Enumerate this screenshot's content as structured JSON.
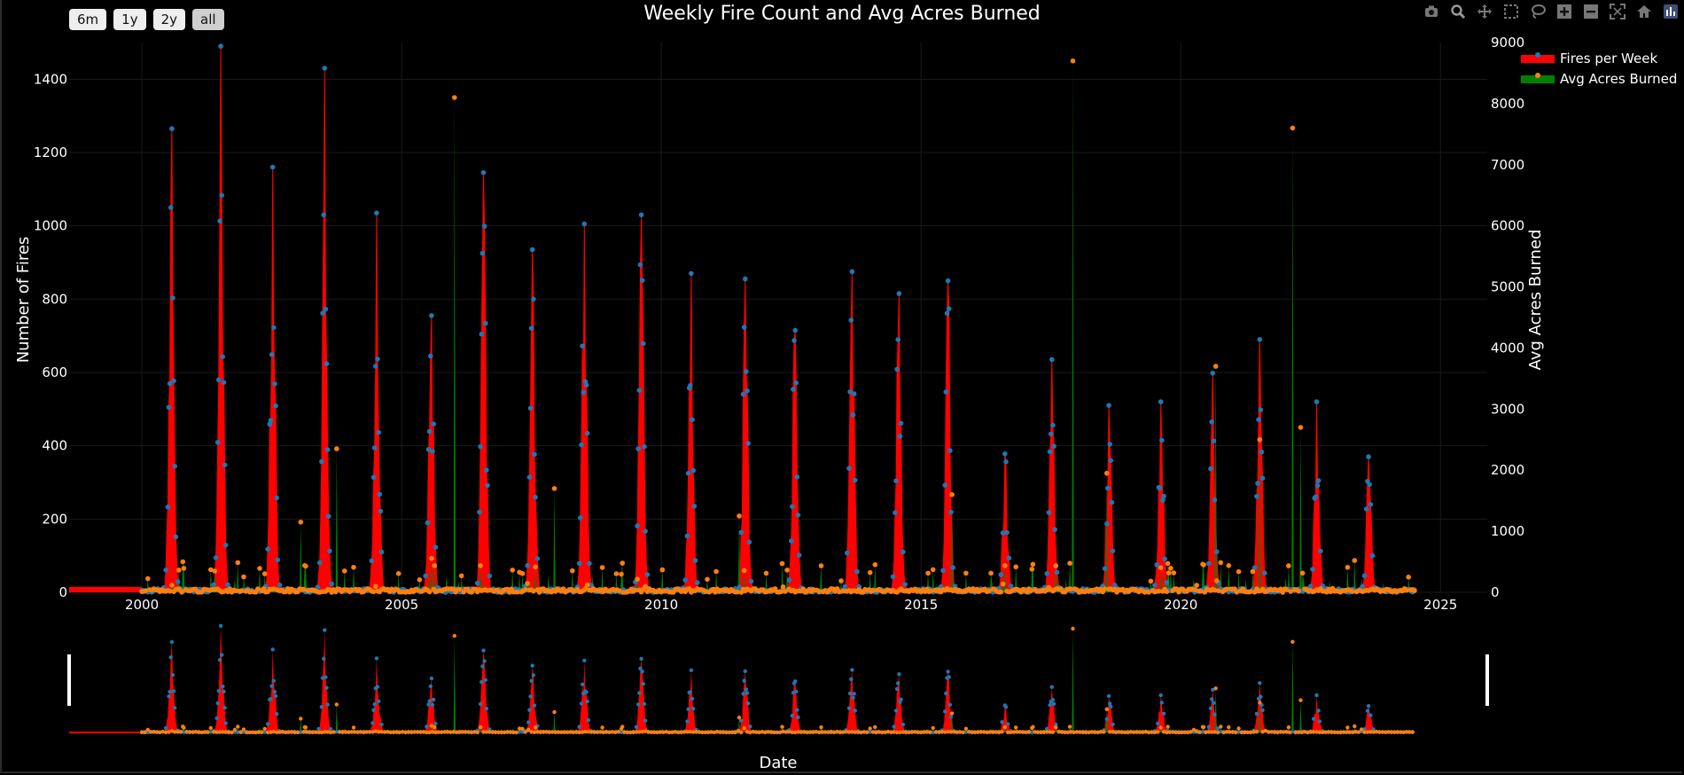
{
  "range_buttons": [
    "6m",
    "1y",
    "2y",
    "all"
  ],
  "range_active": "all",
  "modebar": [
    "camera-icon",
    "zoom-icon",
    "pan-icon",
    "box-select-icon",
    "lasso-icon",
    "zoom-in-icon",
    "zoom-out-icon",
    "autoscale-icon",
    "home-icon",
    "plotly-logo-icon"
  ],
  "chart_data": {
    "type": "area",
    "title": "Weekly Fire Count and Avg Acres Burned",
    "xlabel": "Date",
    "ylabel": "Number of Fires",
    "y2label": "Avg Acres Burned",
    "xlim": [
      1998.6,
      2025.9
    ],
    "ylim": [
      0,
      1500
    ],
    "y2lim": [
      0,
      9000
    ],
    "x_ticks": [
      "2000",
      "2005",
      "2010",
      "2015",
      "2020",
      "2025"
    ],
    "y_ticks": [
      "0",
      "200",
      "400",
      "600",
      "800",
      "1000",
      "1200",
      "1400"
    ],
    "y2_ticks": [
      "0",
      "1000",
      "2000",
      "3000",
      "4000",
      "5000",
      "6000",
      "7000",
      "8000",
      "9000"
    ],
    "legend": {
      "position": "top-right"
    },
    "rangeslider": true,
    "colors": {
      "fires_fill": "#ff0000",
      "fires_marker": "#1f77b4",
      "acres_fill": "#008000",
      "acres_marker": "#ff7f0e"
    },
    "series": [
      {
        "name": "Fires per Week",
        "axis": "y",
        "peaks": [
          {
            "year": 2000,
            "x": 2000.57,
            "value": 1265
          },
          {
            "year": 2001,
            "x": 2001.52,
            "value": 1490
          },
          {
            "year": 2002,
            "x": 2002.52,
            "value": 1160
          },
          {
            "year": 2003,
            "x": 2003.52,
            "value": 1430
          },
          {
            "year": 2004,
            "x": 2004.52,
            "value": 1035
          },
          {
            "year": 2005,
            "x": 2005.57,
            "value": 755
          },
          {
            "year": 2006,
            "x": 2006.58,
            "value": 1145
          },
          {
            "year": 2007,
            "x": 2007.52,
            "value": 935
          },
          {
            "year": 2008,
            "x": 2008.52,
            "value": 1005
          },
          {
            "year": 2009,
            "x": 2009.62,
            "value": 1030
          },
          {
            "year": 2010,
            "x": 2010.57,
            "value": 870
          },
          {
            "year": 2011,
            "x": 2011.62,
            "value": 855
          },
          {
            "year": 2012,
            "x": 2012.57,
            "value": 715
          },
          {
            "year": 2013,
            "x": 2013.67,
            "value": 875
          },
          {
            "year": 2014,
            "x": 2014.57,
            "value": 815
          },
          {
            "year": 2015,
            "x": 2015.52,
            "value": 850
          },
          {
            "year": 2016,
            "x": 2016.62,
            "value": 378
          },
          {
            "year": 2017,
            "x": 2017.52,
            "value": 635
          },
          {
            "year": 2018,
            "x": 2018.62,
            "value": 510
          },
          {
            "year": 2019,
            "x": 2019.62,
            "value": 520
          },
          {
            "year": 2020,
            "x": 2020.62,
            "value": 598
          },
          {
            "year": 2021,
            "x": 2021.52,
            "value": 690
          },
          {
            "year": 2022,
            "x": 2022.62,
            "value": 520
          },
          {
            "year": 2023,
            "x": 2023.62,
            "value": 370
          }
        ]
      },
      {
        "name": "Avg Acres Burned",
        "axis": "y2",
        "peaks": [
          {
            "year": 2003,
            "x": 2003.05,
            "value": 1150
          },
          {
            "year": 2003,
            "x": 2003.75,
            "value": 2350
          },
          {
            "year": 2006,
            "x": 2006.02,
            "value": 8100
          },
          {
            "year": 2007,
            "x": 2007.95,
            "value": 1700
          },
          {
            "year": 2011,
            "x": 2011.5,
            "value": 1250
          },
          {
            "year": 2015,
            "x": 2015.6,
            "value": 1600
          },
          {
            "year": 2017,
            "x": 2017.92,
            "value": 8700
          },
          {
            "year": 2018,
            "x": 2018.58,
            "value": 1950
          },
          {
            "year": 2020,
            "x": 2020.68,
            "value": 3700
          },
          {
            "year": 2021,
            "x": 2021.52,
            "value": 2500
          },
          {
            "year": 2022,
            "x": 2022.15,
            "value": 7600
          },
          {
            "year": 2022,
            "x": 2022.3,
            "value": 2700
          }
        ]
      }
    ]
  }
}
